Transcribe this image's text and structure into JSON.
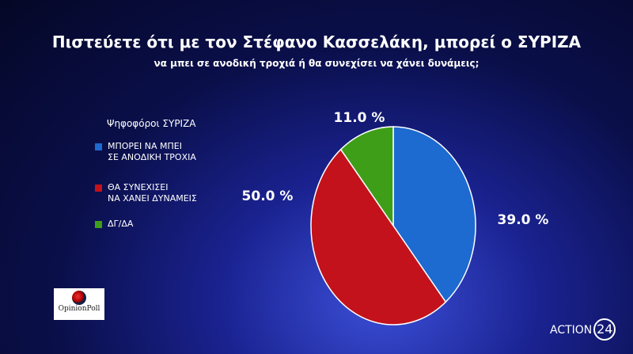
{
  "chart_data": {
    "type": "pie",
    "title": "Πιστεύετε ότι με τον Στέφανο Κασσελάκη, μπορεί ο ΣΥΡΙΖΑ",
    "subtitle": "να μπει σε ανοδική τροχιά ή θα συνεχίσει να χάνει δυνάμεις;",
    "legend_title": "Ψηφοφόροι ΣΥΡΙΖΑ",
    "categories": [
      "ΜΠΟΡΕΙ ΝΑ ΜΠΕΙ\nΣΕ ΑΝΟΔΙΚΗ ΤΡΟΧΙΑ",
      "ΘΑ ΣΥΝΕΧΙΣΕΙ\nΝΑ ΧΑΝΕΙ ΔΥΝΑΜΕΙΣ",
      "ΔΓ/ΔΑ"
    ],
    "values": [
      39,
      50,
      11
    ],
    "value_labels": [
      "39.0 %",
      "50.0 %",
      "11.0 %"
    ],
    "colors": [
      "#1d6ad0",
      "#c3121b",
      "#3f9e18"
    ]
  },
  "branding": {
    "pollster": "OpinionPoll",
    "channel": "ACTION",
    "channel_number": "24"
  }
}
